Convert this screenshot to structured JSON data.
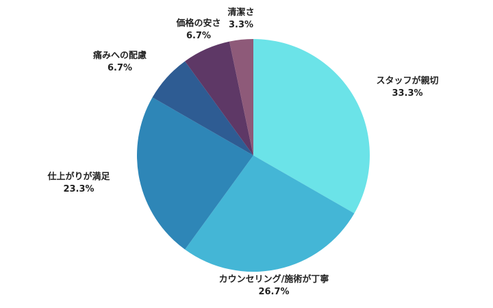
{
  "chart_data": {
    "type": "pie",
    "title": "",
    "start": "top",
    "direction": "clockwise",
    "slices": [
      {
        "label": "スタッフが親切",
        "percent_label": "33.3%",
        "value": 33.3,
        "color": "#6BE3E8"
      },
      {
        "label": "カウンセリング/施術が丁寧",
        "percent_label": "26.7%",
        "value": 26.7,
        "color": "#44B6D6"
      },
      {
        "label": "仕上がりが満足",
        "percent_label": "23.3%",
        "value": 23.3,
        "color": "#2E86B7"
      },
      {
        "label": "痛みへの配慮",
        "percent_label": "6.7%",
        "value": 6.7,
        "color": "#2E5C93"
      },
      {
        "label": "価格の安さ",
        "percent_label": "6.7%",
        "value": 6.7,
        "color": "#5E3866"
      },
      {
        "label": "清潔さ",
        "percent_label": "3.3%",
        "value": 3.3,
        "color": "#8E5A79"
      }
    ]
  }
}
